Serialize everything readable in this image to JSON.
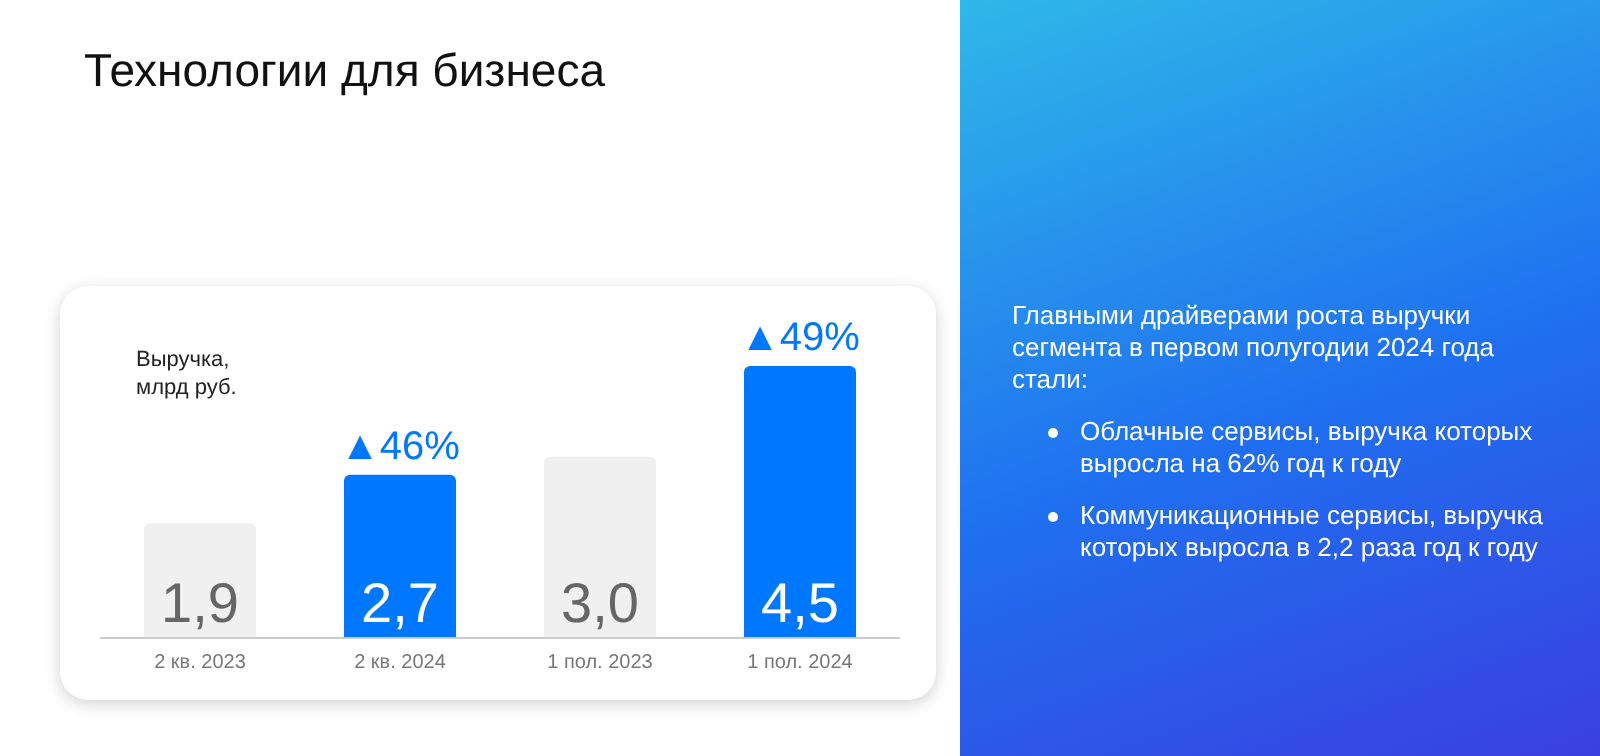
{
  "chart_data": {
    "type": "bar",
    "title": "Технологии для бизнеса",
    "ylabel": "Выручка, млрд руб.",
    "categories": [
      "2 кв. 2023",
      "2 кв. 2024",
      "1 пол. 2023",
      "1 пол. 2024"
    ],
    "values": [
      1.9,
      2.7,
      3.0,
      4.5
    ],
    "colors": [
      "#f0f0f0",
      "#0077ff",
      "#f0f0f0",
      "#0077ff"
    ],
    "value_labels": [
      "1,9",
      "2,7",
      "3,0",
      "4,5"
    ],
    "annotations": [
      {
        "text": "▲46%",
        "x": "2 кв. 2024",
        "y": 2.7
      },
      {
        "text": "▲49%",
        "x": "1 пол. 2024",
        "y": 4.5
      },
      "Главными драйверами роста выручки сегмента в первом полугодии 2024 года стали:",
      "Облачные сервисы, выручка которых выросла на 62% год к году",
      "Коммуникационные сервисы, выручка которых выросла в 2,2 раза год к году"
    ],
    "grid": false,
    "legend": false
  }
}
